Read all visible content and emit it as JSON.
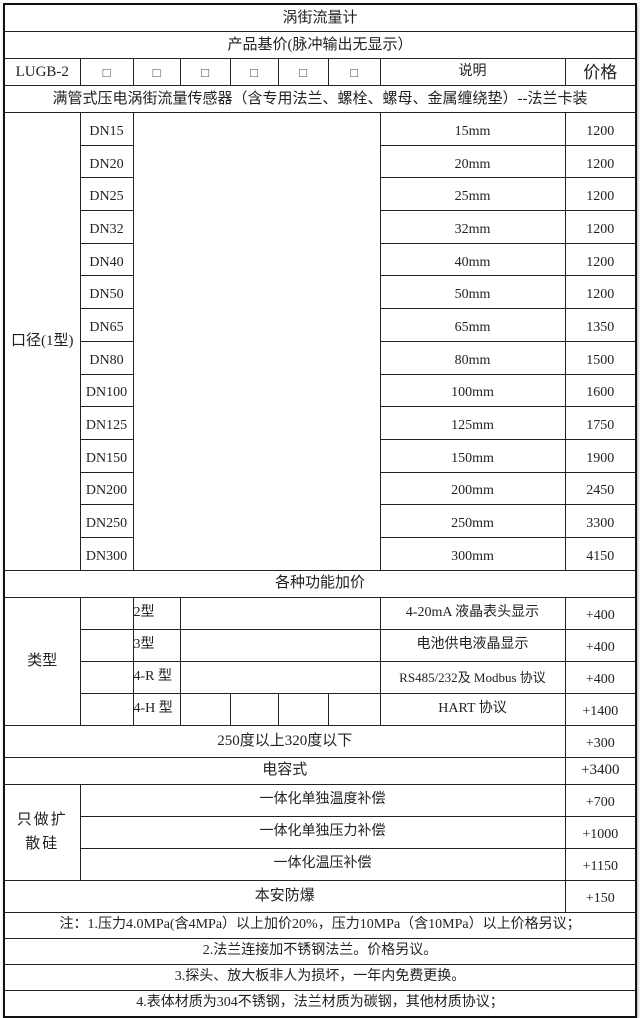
{
  "title": "涡街流量计",
  "subtitle": "产品基价(脉冲输出无显示）",
  "header": {
    "model": "LUGB-2",
    "boxes": [
      "□",
      "□",
      "□",
      "□",
      "□",
      "□"
    ],
    "desc_label": "说明",
    "price_label": "价格"
  },
  "product_desc": "满管式压电涡街流量传感器（含专用法兰、螺栓、螺母、金属缠绕垫）--法兰卡装",
  "caliber": {
    "label": "口径(1型)",
    "rows": [
      {
        "dn": "DN15",
        "size": "15mm",
        "price": "1200"
      },
      {
        "dn": "DN20",
        "size": "20mm",
        "price": "1200"
      },
      {
        "dn": "DN25",
        "size": "25mm",
        "price": "1200"
      },
      {
        "dn": "DN32",
        "size": "32mm",
        "price": "1200"
      },
      {
        "dn": "DN40",
        "size": "40mm",
        "price": "1200"
      },
      {
        "dn": "DN50",
        "size": "50mm",
        "price": "1200"
      },
      {
        "dn": "DN65",
        "size": "65mm",
        "price": "1350"
      },
      {
        "dn": "DN80",
        "size": "80mm",
        "price": "1500"
      },
      {
        "dn": "DN100",
        "size": "100mm",
        "price": "1600"
      },
      {
        "dn": "DN125",
        "size": "125mm",
        "price": "1750"
      },
      {
        "dn": "DN150",
        "size": "150mm",
        "price": "1900"
      },
      {
        "dn": "DN200",
        "size": "200mm",
        "price": "2450"
      },
      {
        "dn": "DN250",
        "size": "250mm",
        "price": "3300"
      },
      {
        "dn": "DN300",
        "size": "300mm",
        "price": "4150"
      }
    ]
  },
  "functions_title": "各种功能加价",
  "types": {
    "label": "类型",
    "rows": [
      {
        "code": "2型",
        "desc": "4-20mA  液晶表头显示",
        "price": "+400"
      },
      {
        "code": "3型",
        "desc": "电池供电液晶显示",
        "price": "+400"
      },
      {
        "code": "4-R 型",
        "desc": "RS485/232及 Modbus 协议",
        "price": "+400"
      },
      {
        "code": "4-H 型",
        "desc": "HART 协议",
        "price": "+1400"
      }
    ]
  },
  "temp": {
    "desc": "250度以上320度以下",
    "price": "+300"
  },
  "capacitive": {
    "desc": "电容式",
    "price": "+3400"
  },
  "silicon": {
    "label": "只做扩散硅",
    "rows": [
      {
        "desc": "一体化单独温度补偿",
        "price": "+700"
      },
      {
        "desc": "一体化单独压力补偿",
        "price": "+1000"
      },
      {
        "desc": "一体化温压补偿",
        "price": "+1150"
      }
    ]
  },
  "explosion": {
    "desc": "本安防爆",
    "price": "+150"
  },
  "notes": [
    "注：1.压力4.0MPa(含4MPa）以上加价20%，压力10MPa（含10MPa）以上价格另议；",
    "2.法兰连接加不锈钢法兰。价格另议。",
    "3.探头、放大板非人为损坏，一年内免费更换。",
    "4.表体材质为304不锈钢，法兰材质为碳钢，其他材质协议；"
  ]
}
